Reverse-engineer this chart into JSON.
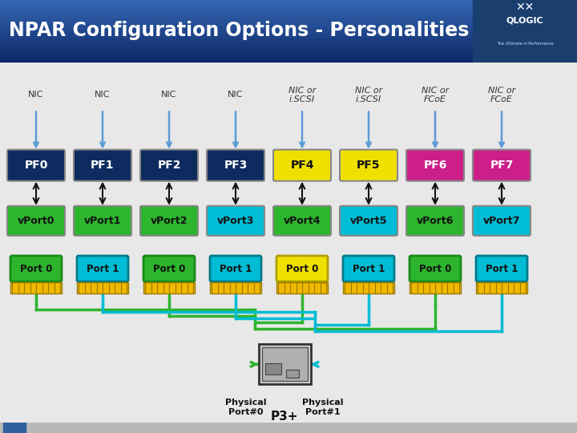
{
  "title": "NPAR Configuration Options - Personalities",
  "bg_color": "#f5f5f5",
  "pf_labels": [
    "PF0",
    "PF1",
    "PF2",
    "PF3",
    "PF4",
    "PF5",
    "PF6",
    "PF7"
  ],
  "pf_colors": [
    "#0d2b5e",
    "#0d2b5e",
    "#0d2b5e",
    "#0d2b5e",
    "#f0e000",
    "#f0e000",
    "#cc1f8a",
    "#cc1f8a"
  ],
  "pf_text_colors": [
    "#ffffff",
    "#ffffff",
    "#ffffff",
    "#ffffff",
    "#111111",
    "#111111",
    "#ffffff",
    "#ffffff"
  ],
  "vport_labels": [
    "vPort0",
    "vPort1",
    "vPort2",
    "vPort3",
    "vPort4",
    "vPort5",
    "vPort6",
    "vPort7"
  ],
  "vport_colors": [
    "#2db52d",
    "#2db52d",
    "#2db52d",
    "#00bcd4",
    "#2db52d",
    "#00bcd4",
    "#2db52d",
    "#00bcd4"
  ],
  "port_labels": [
    "Port 0",
    "Port 1",
    "Port 0",
    "Port 1",
    "Port 0",
    "Port 1",
    "Port 0",
    "Port 1"
  ],
  "port_colors": [
    "#2db52d",
    "#00bcd4",
    "#2db52d",
    "#00bcd4",
    "#f0e000",
    "#00bcd4",
    "#2db52d",
    "#00bcd4"
  ],
  "port_border_colors": [
    "#1a8a1a",
    "#007a8a",
    "#1a8a1a",
    "#007a8a",
    "#b0a000",
    "#007a8a",
    "#1a8a1a",
    "#007a8a"
  ],
  "port_text_colors": [
    "#000000",
    "#000000",
    "#000000",
    "#000000",
    "#000000",
    "#000000",
    "#000000",
    "#000000"
  ],
  "personality_labels": [
    "NIC",
    "NIC",
    "NIC",
    "NIC",
    "NIC or\ni.SCSI",
    "NIC or\ni.SCSI",
    "NIC or\nFCoE",
    "NIC or\nFCoE"
  ],
  "personality_italic": [
    false,
    false,
    false,
    false,
    true,
    true,
    true,
    true
  ],
  "line_green": "#2db52d",
  "line_cyan": "#00bcd4",
  "physical_label0": "Physical\nPort#0",
  "physical_label1": "Physical\nPort#1",
  "p3_label": "P3+"
}
